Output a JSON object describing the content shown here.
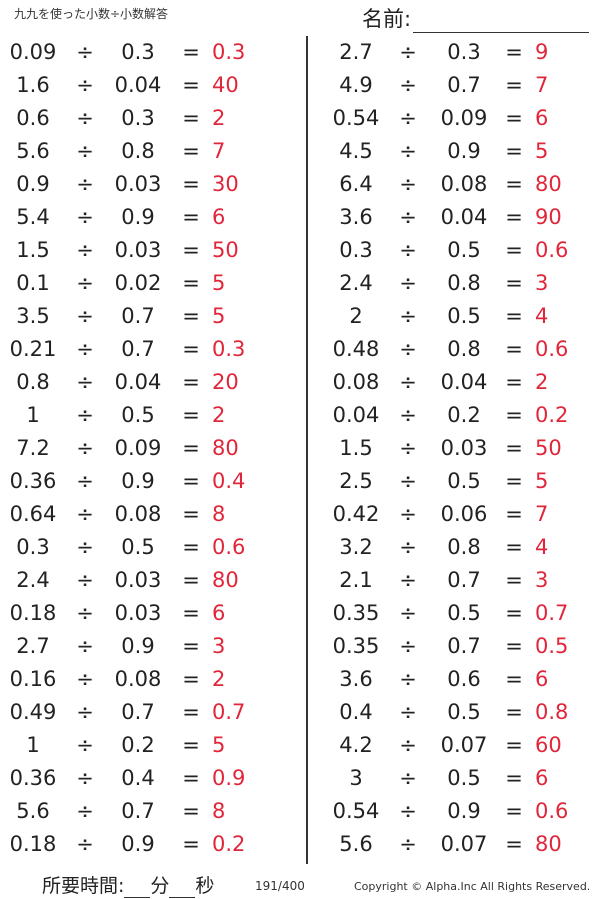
{
  "header": {
    "title": "九九を使った小数÷小数解答",
    "name_label": "名前:"
  },
  "left_problems": [
    {
      "a": "0.09",
      "op": "÷",
      "b": "0.3",
      "eq": "=",
      "ans": "0.3"
    },
    {
      "a": "1.6",
      "op": "÷",
      "b": "0.04",
      "eq": "=",
      "ans": "40"
    },
    {
      "a": "0.6",
      "op": "÷",
      "b": "0.3",
      "eq": "=",
      "ans": "2"
    },
    {
      "a": "5.6",
      "op": "÷",
      "b": "0.8",
      "eq": "=",
      "ans": "7"
    },
    {
      "a": "0.9",
      "op": "÷",
      "b": "0.03",
      "eq": "=",
      "ans": "30"
    },
    {
      "a": "5.4",
      "op": "÷",
      "b": "0.9",
      "eq": "=",
      "ans": "6"
    },
    {
      "a": "1.5",
      "op": "÷",
      "b": "0.03",
      "eq": "=",
      "ans": "50"
    },
    {
      "a": "0.1",
      "op": "÷",
      "b": "0.02",
      "eq": "=",
      "ans": "5"
    },
    {
      "a": "3.5",
      "op": "÷",
      "b": "0.7",
      "eq": "=",
      "ans": "5"
    },
    {
      "a": "0.21",
      "op": "÷",
      "b": "0.7",
      "eq": "=",
      "ans": "0.3"
    },
    {
      "a": "0.8",
      "op": "÷",
      "b": "0.04",
      "eq": "=",
      "ans": "20"
    },
    {
      "a": "1",
      "op": "÷",
      "b": "0.5",
      "eq": "=",
      "ans": "2"
    },
    {
      "a": "7.2",
      "op": "÷",
      "b": "0.09",
      "eq": "=",
      "ans": "80"
    },
    {
      "a": "0.36",
      "op": "÷",
      "b": "0.9",
      "eq": "=",
      "ans": "0.4"
    },
    {
      "a": "0.64",
      "op": "÷",
      "b": "0.08",
      "eq": "=",
      "ans": "8"
    },
    {
      "a": "0.3",
      "op": "÷",
      "b": "0.5",
      "eq": "=",
      "ans": "0.6"
    },
    {
      "a": "2.4",
      "op": "÷",
      "b": "0.03",
      "eq": "=",
      "ans": "80"
    },
    {
      "a": "0.18",
      "op": "÷",
      "b": "0.03",
      "eq": "=",
      "ans": "6"
    },
    {
      "a": "2.7",
      "op": "÷",
      "b": "0.9",
      "eq": "=",
      "ans": "3"
    },
    {
      "a": "0.16",
      "op": "÷",
      "b": "0.08",
      "eq": "=",
      "ans": "2"
    },
    {
      "a": "0.49",
      "op": "÷",
      "b": "0.7",
      "eq": "=",
      "ans": "0.7"
    },
    {
      "a": "1",
      "op": "÷",
      "b": "0.2",
      "eq": "=",
      "ans": "5"
    },
    {
      "a": "0.36",
      "op": "÷",
      "b": "0.4",
      "eq": "=",
      "ans": "0.9"
    },
    {
      "a": "5.6",
      "op": "÷",
      "b": "0.7",
      "eq": "=",
      "ans": "8"
    },
    {
      "a": "0.18",
      "op": "÷",
      "b": "0.9",
      "eq": "=",
      "ans": "0.2"
    }
  ],
  "right_problems": [
    {
      "a": "2.7",
      "op": "÷",
      "b": "0.3",
      "eq": "=",
      "ans": "9"
    },
    {
      "a": "4.9",
      "op": "÷",
      "b": "0.7",
      "eq": "=",
      "ans": "7"
    },
    {
      "a": "0.54",
      "op": "÷",
      "b": "0.09",
      "eq": "=",
      "ans": "6"
    },
    {
      "a": "4.5",
      "op": "÷",
      "b": "0.9",
      "eq": "=",
      "ans": "5"
    },
    {
      "a": "6.4",
      "op": "÷",
      "b": "0.08",
      "eq": "=",
      "ans": "80"
    },
    {
      "a": "3.6",
      "op": "÷",
      "b": "0.04",
      "eq": "=",
      "ans": "90"
    },
    {
      "a": "0.3",
      "op": "÷",
      "b": "0.5",
      "eq": "=",
      "ans": "0.6"
    },
    {
      "a": "2.4",
      "op": "÷",
      "b": "0.8",
      "eq": "=",
      "ans": "3"
    },
    {
      "a": "2",
      "op": "÷",
      "b": "0.5",
      "eq": "=",
      "ans": "4"
    },
    {
      "a": "0.48",
      "op": "÷",
      "b": "0.8",
      "eq": "=",
      "ans": "0.6"
    },
    {
      "a": "0.08",
      "op": "÷",
      "b": "0.04",
      "eq": "=",
      "ans": "2"
    },
    {
      "a": "0.04",
      "op": "÷",
      "b": "0.2",
      "eq": "=",
      "ans": "0.2"
    },
    {
      "a": "1.5",
      "op": "÷",
      "b": "0.03",
      "eq": "=",
      "ans": "50"
    },
    {
      "a": "2.5",
      "op": "÷",
      "b": "0.5",
      "eq": "=",
      "ans": "5"
    },
    {
      "a": "0.42",
      "op": "÷",
      "b": "0.06",
      "eq": "=",
      "ans": "7"
    },
    {
      "a": "3.2",
      "op": "÷",
      "b": "0.8",
      "eq": "=",
      "ans": "4"
    },
    {
      "a": "2.1",
      "op": "÷",
      "b": "0.7",
      "eq": "=",
      "ans": "3"
    },
    {
      "a": "0.35",
      "op": "÷",
      "b": "0.5",
      "eq": "=",
      "ans": "0.7"
    },
    {
      "a": "0.35",
      "op": "÷",
      "b": "0.7",
      "eq": "=",
      "ans": "0.5"
    },
    {
      "a": "3.6",
      "op": "÷",
      "b": "0.6",
      "eq": "=",
      "ans": "6"
    },
    {
      "a": "0.4",
      "op": "÷",
      "b": "0.5",
      "eq": "=",
      "ans": "0.8"
    },
    {
      "a": "4.2",
      "op": "÷",
      "b": "0.07",
      "eq": "=",
      "ans": "60"
    },
    {
      "a": "3",
      "op": "÷",
      "b": "0.5",
      "eq": "=",
      "ans": "6"
    },
    {
      "a": "0.54",
      "op": "÷",
      "b": "0.9",
      "eq": "=",
      "ans": "0.6"
    },
    {
      "a": "5.6",
      "op": "÷",
      "b": "0.07",
      "eq": "=",
      "ans": "80"
    }
  ],
  "footer": {
    "time_label": "所要時間:",
    "minutes_unit": "分",
    "seconds_unit": "秒",
    "page_number": "191/400",
    "copyright": "Copyright © Alpha.Inc All Rights Reserved."
  },
  "colors": {
    "answer": "#e0263a",
    "text": "#222222"
  }
}
